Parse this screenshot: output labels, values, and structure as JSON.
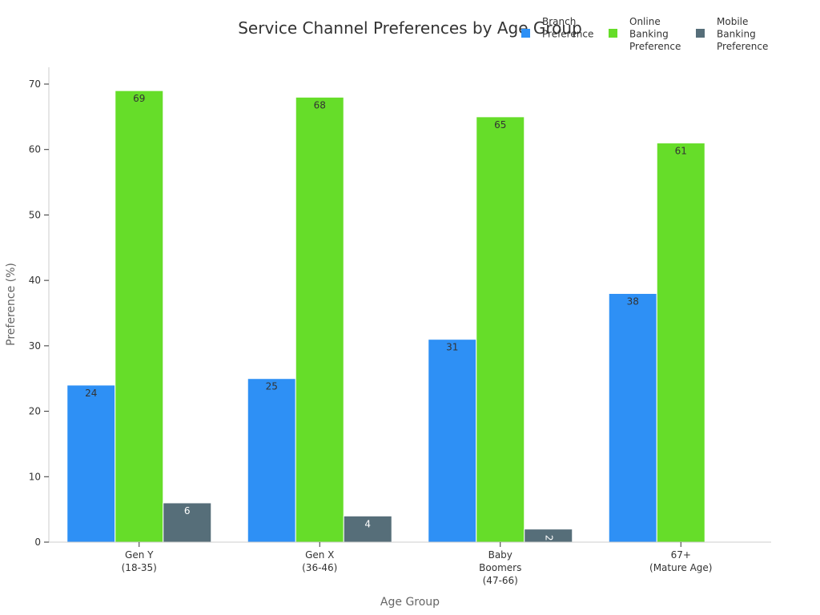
{
  "chart_data": {
    "type": "bar",
    "title": "Service Channel Preferences by Age Group",
    "xlabel": "Age Group",
    "ylabel": "Preference (%)",
    "ylim": [
      0,
      72
    ],
    "yticks": [
      0,
      10,
      20,
      30,
      40,
      50,
      60,
      70
    ],
    "grid": false,
    "legend_position": "top-right",
    "categories": [
      [
        "Gen Y",
        "(18-35)"
      ],
      [
        "Gen X",
        "(36-46)"
      ],
      [
        "Baby",
        "Boomers",
        "(47-66)"
      ],
      [
        "67+",
        "(Mature Age)"
      ]
    ],
    "series": [
      {
        "name": [
          "Branch",
          "Preference"
        ],
        "color": "#2e90f5",
        "label_color": "#333333",
        "values": [
          24,
          25,
          31,
          38
        ]
      },
      {
        "name": [
          "Online",
          "Banking",
          "Preference"
        ],
        "color": "#66dd29",
        "label_color": "#333333",
        "values": [
          69,
          68,
          65,
          61
        ]
      },
      {
        "name": [
          "Mobile",
          "Banking",
          "Preference"
        ],
        "color": "#566e79",
        "label_color": "#ffffff",
        "values": [
          6,
          4,
          2,
          0
        ]
      }
    ]
  }
}
